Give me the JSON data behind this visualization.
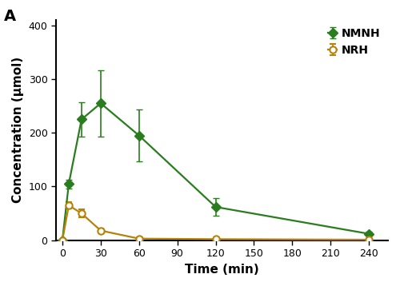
{
  "title_label": "A",
  "xlabel": "Time (min)",
  "ylabel": "Concentration (μmol)",
  "xlim": [
    -5,
    255
  ],
  "ylim": [
    0,
    410
  ],
  "xticks": [
    0,
    30,
    60,
    90,
    120,
    150,
    180,
    210,
    240
  ],
  "yticks": [
    0,
    100,
    200,
    300,
    400
  ],
  "NMNH": {
    "x": [
      0,
      5,
      15,
      30,
      60,
      120,
      240
    ],
    "y": [
      0,
      105,
      225,
      255,
      195,
      62,
      12
    ],
    "yerr": [
      0,
      8,
      32,
      62,
      48,
      17,
      4
    ],
    "color": "#2a7d1e",
    "marker": "D",
    "markersize": 6,
    "label": "NMNH"
  },
  "NRH": {
    "x": [
      0,
      5,
      15,
      30,
      60,
      120,
      240
    ],
    "y": [
      0,
      65,
      50,
      18,
      3,
      2,
      1
    ],
    "yerr": [
      0,
      6,
      8,
      4,
      1,
      1,
      0.5
    ],
    "color": "#b5820a",
    "marker": "o",
    "markersize": 6,
    "label": "NRH"
  },
  "background_color": "#ffffff",
  "legend_fontsize": 10,
  "axis_fontsize": 11,
  "tick_fontsize": 9,
  "linewidth": 1.6
}
